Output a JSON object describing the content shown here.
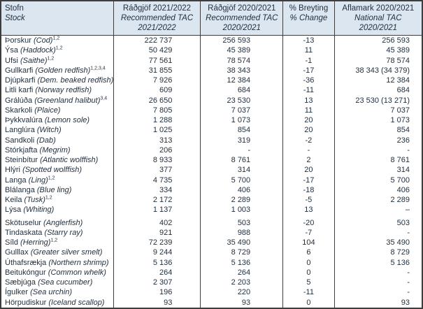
{
  "table": {
    "colors": {
      "header_bg": "#dce6f1",
      "border": "#3d3d3d",
      "text": "#22303f"
    },
    "header": {
      "col_stock": {
        "l1": "Stofn",
        "l2": "Stock"
      },
      "col_rec_2122": {
        "l1": "Ráðgjöf 2021/2022",
        "l2": "Recommended TAC",
        "l3": "2021/2022"
      },
      "col_rec_2021": {
        "l1": "Ráðgjöf 2020/2021",
        "l2": "Recommended TAC",
        "l3": "2020/2021"
      },
      "col_change": {
        "l1": "% Breyting",
        "l2": "% Change"
      },
      "col_national": {
        "l1": "Aflamark 2020/2021",
        "l2": "National TAC",
        "l3": "2020/2021"
      }
    },
    "rows": [
      {
        "stofn": "Þorskur",
        "stock": "(Cod)",
        "sup": "1,2",
        "rec_2122": "222 737",
        "rec_2021": "256 593",
        "change": "-13",
        "national": "256 593",
        "gap": false
      },
      {
        "stofn": "Ýsa",
        "stock": "(Haddock)",
        "sup": "1,2",
        "rec_2122": "50 429",
        "rec_2021": "45 389",
        "change": "11",
        "national": "45 389",
        "gap": false
      },
      {
        "stofn": "Ufsi",
        "stock": "(Saithe)",
        "sup": "1,2",
        "rec_2122": "77 561",
        "rec_2021": "78 574",
        "change": "-1",
        "national": "78 574",
        "gap": false
      },
      {
        "stofn": "Gullkarfi",
        "stock": "(Golden redfish)",
        "sup": "1,2,3,4",
        "rec_2122": "31 855",
        "rec_2021": "38 343",
        "change": "-17",
        "national": "38 343 (34 379)",
        "gap": false
      },
      {
        "stofn": "Djúpkarfi",
        "stock": "(Dem. beaked redfish)",
        "sup": "",
        "rec_2122": "7 926",
        "rec_2021": "12 384",
        "change": "-36",
        "national": "12 384",
        "gap": false
      },
      {
        "stofn": "Litli karfi",
        "stock": "(Norway redfish)",
        "sup": "",
        "rec_2122": "609",
        "rec_2021": "684",
        "change": "-11",
        "national": "684",
        "gap": false
      },
      {
        "stofn": "Grálúða",
        "stock": "(Greenland halibut)",
        "sup": "3,4",
        "rec_2122": "26 650",
        "rec_2021": "23 530",
        "change": "13",
        "national": "23 530 (13 271)",
        "gap": false
      },
      {
        "stofn": "Skarkoli",
        "stock": "(Plaice)",
        "sup": "",
        "rec_2122": "7 805",
        "rec_2021": "7 037",
        "change": "11",
        "national": "7 037",
        "gap": false
      },
      {
        "stofn": "Þykkvalúra",
        "stock": "(Lemon sole)",
        "sup": "",
        "rec_2122": "1 288",
        "rec_2021": "1 073",
        "change": "20",
        "national": "1 073",
        "gap": false
      },
      {
        "stofn": "Langlúra",
        "stock": "(Witch)",
        "sup": "",
        "rec_2122": "1 025",
        "rec_2021": "854",
        "change": "20",
        "national": "854",
        "gap": false
      },
      {
        "stofn": "Sandkoli",
        "stock": "(Dab)",
        "sup": "",
        "rec_2122": "313",
        "rec_2021": "319",
        "change": "-2",
        "national": "236",
        "gap": false
      },
      {
        "stofn": "Stórkjafta",
        "stock": "(Megrim)",
        "sup": "",
        "rec_2122": "206",
        "rec_2021": "-",
        "change": "-",
        "national": "-",
        "gap": false
      },
      {
        "stofn": "Steinbítur",
        "stock": "(Atlantic wolffish)",
        "sup": "",
        "rec_2122": "8 933",
        "rec_2021": "8 761",
        "change": "2",
        "national": "8 761",
        "gap": false
      },
      {
        "stofn": "Hlýri",
        "stock": "(Spotted wolffish)",
        "sup": "",
        "rec_2122": "377",
        "rec_2021": "314",
        "change": "20",
        "national": "314",
        "gap": false
      },
      {
        "stofn": "Langa",
        "stock": "(Ling)",
        "sup": "1,2",
        "rec_2122": "4 735",
        "rec_2021": "5 700",
        "change": "-17",
        "national": "5 700",
        "gap": false
      },
      {
        "stofn": "Blálanga",
        "stock": "(Blue ling)",
        "sup": "",
        "rec_2122": "334",
        "rec_2021": "406",
        "change": "-18",
        "national": "406",
        "gap": false
      },
      {
        "stofn": "Keila",
        "stock": "(Tusk)",
        "sup": "1,2",
        "rec_2122": "2 172",
        "rec_2021": "2 289",
        "change": "-5",
        "national": "2 289",
        "gap": false
      },
      {
        "stofn": "Lýsa",
        "stock": "(Whiting)",
        "sup": "",
        "rec_2122": "1 137",
        "rec_2021": "1 003",
        "change": "13",
        "national": "–",
        "gap": false
      },
      {
        "stofn": "Skötuselur",
        "stock": "(Anglerfish)",
        "sup": "",
        "rec_2122": "402",
        "rec_2021": "503",
        "change": "-20",
        "national": "503",
        "gap": true
      },
      {
        "stofn": "Tindaskata",
        "stock": "(Starry ray)",
        "sup": "",
        "rec_2122": "921",
        "rec_2021": "988",
        "change": "-7",
        "national": "-",
        "gap": false
      },
      {
        "stofn": "Síld",
        "stock": "(Herring)",
        "sup": "1,2",
        "rec_2122": "72 239",
        "rec_2021": "35 490",
        "change": "104",
        "national": "35 490",
        "gap": false
      },
      {
        "stofn": "Gulllax",
        "stock": "(Greater silver smelt)",
        "sup": "",
        "rec_2122": "9 244",
        "rec_2021": "8 729",
        "change": "6",
        "national": "8 729",
        "gap": false
      },
      {
        "stofn": "Úthafsrækja",
        "stock": "(Northern shrimp)",
        "sup": "",
        "rec_2122": "5 136",
        "rec_2021": "5 136",
        "change": "0",
        "national": "5 136",
        "gap": false
      },
      {
        "stofn": "Beitukóngur",
        "stock": "(Common whelk)",
        "sup": "",
        "rec_2122": "264",
        "rec_2021": "264",
        "change": "0",
        "national": "-",
        "gap": false
      },
      {
        "stofn": "Sæbjúga",
        "stock": "(Sea cucumber)",
        "sup": "",
        "rec_2122": "2 307",
        "rec_2021": "2 203",
        "change": "5",
        "national": "-",
        "gap": false
      },
      {
        "stofn": "Ígulker",
        "stock": "(Sea urchin)",
        "sup": "",
        "rec_2122": "196",
        "rec_2021": "220",
        "change": "-11",
        "national": "-",
        "gap": false
      },
      {
        "stofn": "Hörpudiskur",
        "stock": "(Iceland scallop)",
        "sup": "",
        "rec_2122": "93",
        "rec_2021": "93",
        "change": "0",
        "national": "93",
        "gap": false
      }
    ]
  }
}
